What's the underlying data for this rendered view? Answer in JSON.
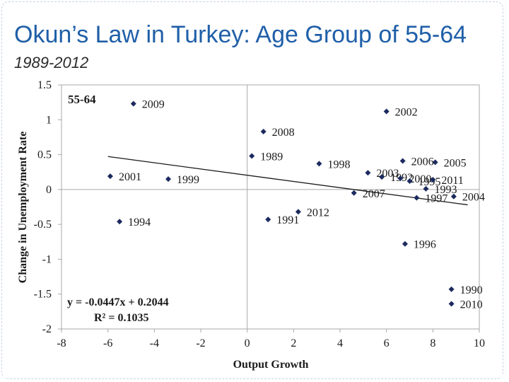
{
  "slide": {
    "title": "Okun’s Law in Turkey: Age Group of 55-64",
    "subtitle": "1989-2012"
  },
  "chart_data": {
    "type": "scatter",
    "panel_label": "55-64",
    "xlabel": "Output Growth",
    "ylabel": "Change in Unemployment Rate",
    "xlim": [
      -8,
      10
    ],
    "ylim": [
      -2,
      1.5
    ],
    "x_ticks": [
      -8,
      -6,
      -4,
      -2,
      0,
      2,
      4,
      6,
      8,
      10
    ],
    "y_ticks": [
      1.5,
      1,
      0.5,
      0,
      -0.5,
      -1,
      -1.5,
      -2
    ],
    "grid": false,
    "points": [
      {
        "label": "2009",
        "x": -4.9,
        "y": 1.23
      },
      {
        "label": "2002",
        "x": 6.0,
        "y": 1.12
      },
      {
        "label": "2008",
        "x": 0.7,
        "y": 0.83
      },
      {
        "label": "1989",
        "x": 0.2,
        "y": 0.48
      },
      {
        "label": "1998",
        "x": 3.1,
        "y": 0.37
      },
      {
        "label": "2006",
        "x": 6.7,
        "y": 0.41
      },
      {
        "label": "2005",
        "x": 8.1,
        "y": 0.39
      },
      {
        "label": "2003",
        "x": 5.2,
        "y": 0.24
      },
      {
        "label": "1992",
        "x": 5.8,
        "y": 0.18
      },
      {
        "label": "2000",
        "x": 6.6,
        "y": 0.16
      },
      {
        "label": "1995",
        "x": 7.0,
        "y": 0.12
      },
      {
        "label": "2011",
        "x": 8.0,
        "y": 0.14
      },
      {
        "label": "1993",
        "x": 7.7,
        "y": 0.01
      },
      {
        "label": "1997",
        "x": 7.3,
        "y": -0.12
      },
      {
        "label": "2004",
        "x": 8.9,
        "y": -0.1
      },
      {
        "label": "2007",
        "x": 4.6,
        "y": -0.05
      },
      {
        "label": "2001",
        "x": -5.9,
        "y": 0.19
      },
      {
        "label": "1999",
        "x": -3.4,
        "y": 0.15
      },
      {
        "label": "1994",
        "x": -5.5,
        "y": -0.46
      },
      {
        "label": "1991",
        "x": 0.9,
        "y": -0.43
      },
      {
        "label": "2012",
        "x": 2.2,
        "y": -0.32
      },
      {
        "label": "1996",
        "x": 6.8,
        "y": -0.78
      },
      {
        "label": "1990",
        "x": 8.8,
        "y": -1.43
      },
      {
        "label": "2010",
        "x": 8.8,
        "y": -1.64
      }
    ],
    "trendline": {
      "slope": -0.0447,
      "intercept": 0.2044,
      "x_range": [
        -6,
        9.5
      ]
    },
    "annotations": {
      "equation": "y = -0.0447x + 0.2044",
      "r_squared": "R² = 0.1035"
    },
    "colors": {
      "marker": "#1c2a5e",
      "axis": "#a9a9a9",
      "text": "#1a1a1a",
      "trendline": "#1a1a1a"
    }
  }
}
